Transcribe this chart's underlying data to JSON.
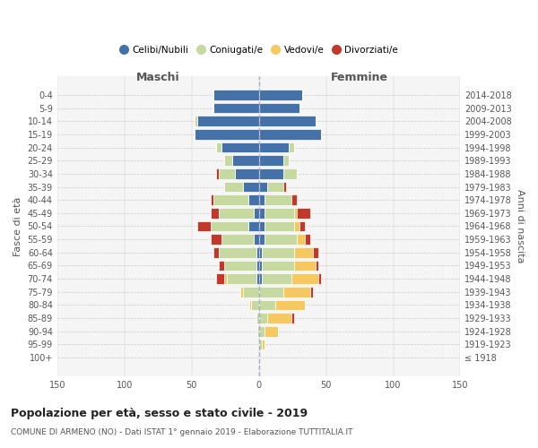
{
  "age_groups": [
    "100+",
    "95-99",
    "90-94",
    "85-89",
    "80-84",
    "75-79",
    "70-74",
    "65-69",
    "60-64",
    "55-59",
    "50-54",
    "45-49",
    "40-44",
    "35-39",
    "30-34",
    "25-29",
    "20-24",
    "15-19",
    "10-14",
    "5-9",
    "0-4"
  ],
  "birth_years": [
    "≤ 1918",
    "1919-1923",
    "1924-1928",
    "1929-1933",
    "1934-1938",
    "1939-1943",
    "1944-1948",
    "1949-1953",
    "1954-1958",
    "1959-1963",
    "1964-1968",
    "1969-1973",
    "1974-1978",
    "1979-1983",
    "1984-1988",
    "1989-1993",
    "1994-1998",
    "1999-2003",
    "2004-2008",
    "2009-2013",
    "2014-2018"
  ],
  "males": {
    "celibi": [
      0,
      0,
      0,
      0,
      0,
      0,
      2,
      2,
      2,
      4,
      8,
      4,
      8,
      12,
      18,
      20,
      28,
      48,
      46,
      34,
      34
    ],
    "coniugati": [
      0,
      0,
      1,
      2,
      6,
      12,
      22,
      24,
      28,
      24,
      28,
      26,
      26,
      14,
      12,
      6,
      4,
      0,
      2,
      0,
      0
    ],
    "vedovi": [
      0,
      0,
      0,
      0,
      1,
      2,
      2,
      0,
      0,
      0,
      0,
      0,
      0,
      0,
      0,
      0,
      0,
      0,
      0,
      0,
      0
    ],
    "divorziati": [
      0,
      0,
      0,
      0,
      0,
      0,
      6,
      4,
      4,
      8,
      10,
      6,
      2,
      0,
      2,
      0,
      0,
      0,
      0,
      0,
      0
    ]
  },
  "females": {
    "nubili": [
      0,
      0,
      0,
      0,
      0,
      0,
      2,
      2,
      2,
      4,
      4,
      4,
      4,
      6,
      18,
      18,
      22,
      46,
      42,
      30,
      32
    ],
    "coniugate": [
      0,
      2,
      4,
      6,
      12,
      18,
      22,
      24,
      24,
      24,
      22,
      22,
      20,
      12,
      10,
      4,
      4,
      0,
      0,
      0,
      0
    ],
    "vedove": [
      0,
      2,
      10,
      18,
      22,
      20,
      20,
      16,
      14,
      6,
      4,
      2,
      0,
      0,
      0,
      0,
      0,
      0,
      0,
      0,
      0
    ],
    "divorziate": [
      0,
      0,
      0,
      2,
      0,
      2,
      2,
      2,
      4,
      4,
      4,
      10,
      4,
      2,
      0,
      0,
      0,
      0,
      0,
      0,
      0
    ]
  },
  "colors": {
    "celibi_nubili": "#4472a8",
    "coniugati": "#c5d9a0",
    "vedovi": "#f5c860",
    "divorziati": "#c0392b"
  },
  "title": "Popolazione per età, sesso e stato civile - 2019",
  "subtitle": "COMUNE DI ARMENO (NO) - Dati ISTAT 1° gennaio 2019 - Elaborazione TUTTITALIA.IT",
  "ylabel_left": "Fasce di età",
  "ylabel_right": "Anni di nascita",
  "xlabel_left": "Maschi",
  "xlabel_right": "Femmine",
  "xlim": 150,
  "bg_color": "#ffffff",
  "grid_color": "#cccccc",
  "bar_height": 0.8
}
